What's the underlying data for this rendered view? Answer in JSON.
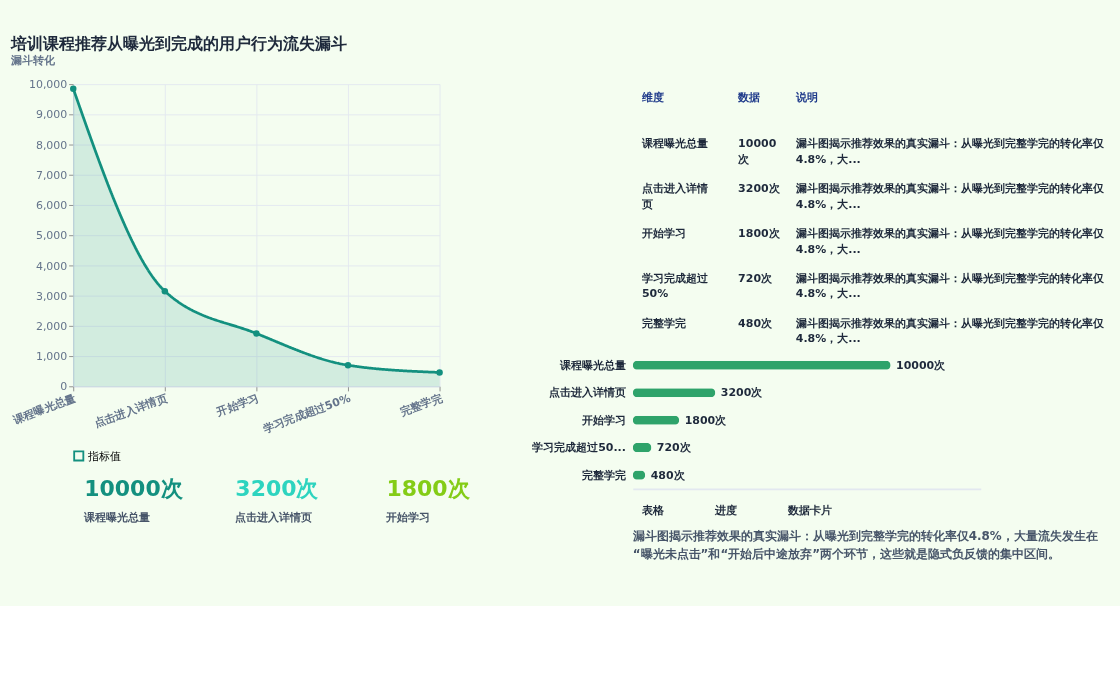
{
  "chart_data": [
    {
      "type": "area",
      "title": "培训课程推荐从曝光到完成的用户行为流失漏斗",
      "subtitle": "漏斗转化",
      "categories": [
        "课程曝光总量",
        "点击进入详情页",
        "开始学习",
        "学习完成超过50%",
        "完整学完"
      ],
      "series": [
        {
          "name": "指标值",
          "color": "#13907f",
          "values": [
            9850,
            3150,
            1750,
            700,
            460
          ]
        }
      ],
      "ylim": [
        0,
        10000
      ],
      "yticks": [
        0,
        {
          "value": 1000,
          "label": "1,000"
        },
        {
          "value": 2000,
          "label": "2,000"
        },
        {
          "value": 3000,
          "label": "3,000"
        },
        {
          "value": 4000,
          "label": "4,000"
        },
        {
          "value": 5000,
          "label": "5,000"
        },
        {
          "value": 6000,
          "label": "6,000"
        },
        {
          "value": 7000,
          "label": "7,000"
        },
        {
          "value": 8000,
          "label": "8,000"
        },
        {
          "value": 9000,
          "label": "9,000"
        },
        {
          "value": 10000,
          "label": "10,000"
        }
      ],
      "grid": true,
      "legend": "bottom",
      "marker": "circle",
      "line_style": "solid"
    },
    {
      "type": "bar",
      "orientation": "horizontal",
      "categories": [
        "课程曝光总量",
        "点击进入详情页",
        "开始学习",
        "学习完成超过50...",
        "完整学完"
      ],
      "values": [
        10000,
        3200,
        1800,
        720,
        480
      ],
      "color": "#2ea36a",
      "xlim": [
        0,
        13500
      ],
      "tick_labels": "y",
      "value_labels": [
        "10000次",
        "3200次",
        "1800次",
        "720次",
        "480次"
      ],
      "annotations": [
        "表格",
        "进度",
        "数据卡片",
        "漏斗图揭示推荐效果的真实漏斗：从曝光到完整学完的转化率仅4.8%，大量流失发生在“曝光未点击”和“开始后中途放弃”两个环节，这些就是隐式负反馈的集中区间。"
      ]
    },
    {
      "type": "other",
      "annotations": [
        "维度",
        "数据",
        "说明",
        "课程曝光总量",
        "10000次",
        "漏斗图揭示推荐效果的真实漏斗：从曝光到完整学完的转化率仅4.8%，大...",
        "点击进入详情页",
        "3200次",
        "漏斗图揭示推荐效果的真实漏斗：从曝光到完整学完的转化率仅4.8%，大...",
        "开始学习",
        "1800次",
        "漏斗图揭示推荐效果的真实漏斗：从曝光到完整学完的转化率仅4.8%，大...",
        "学习完成超过50%",
        "720次",
        "漏斗图揭示推荐效果的真实漏斗：从曝光到完整学完的转化率仅4.8%，大...",
        "完整学完",
        "480次",
        "漏斗图揭示推荐效果的真实漏斗：从曝光到完整学完的转化率仅4.8%，大..."
      ]
    },
    {
      "type": "other",
      "annotations": [
        "10000次",
        "课程曝光总量",
        "3200次",
        "点击进入详情页",
        "1800次",
        "开始学习"
      ],
      "colors": [
        "#13907f",
        "#2dd4bf",
        "#84cc16"
      ]
    }
  ]
}
